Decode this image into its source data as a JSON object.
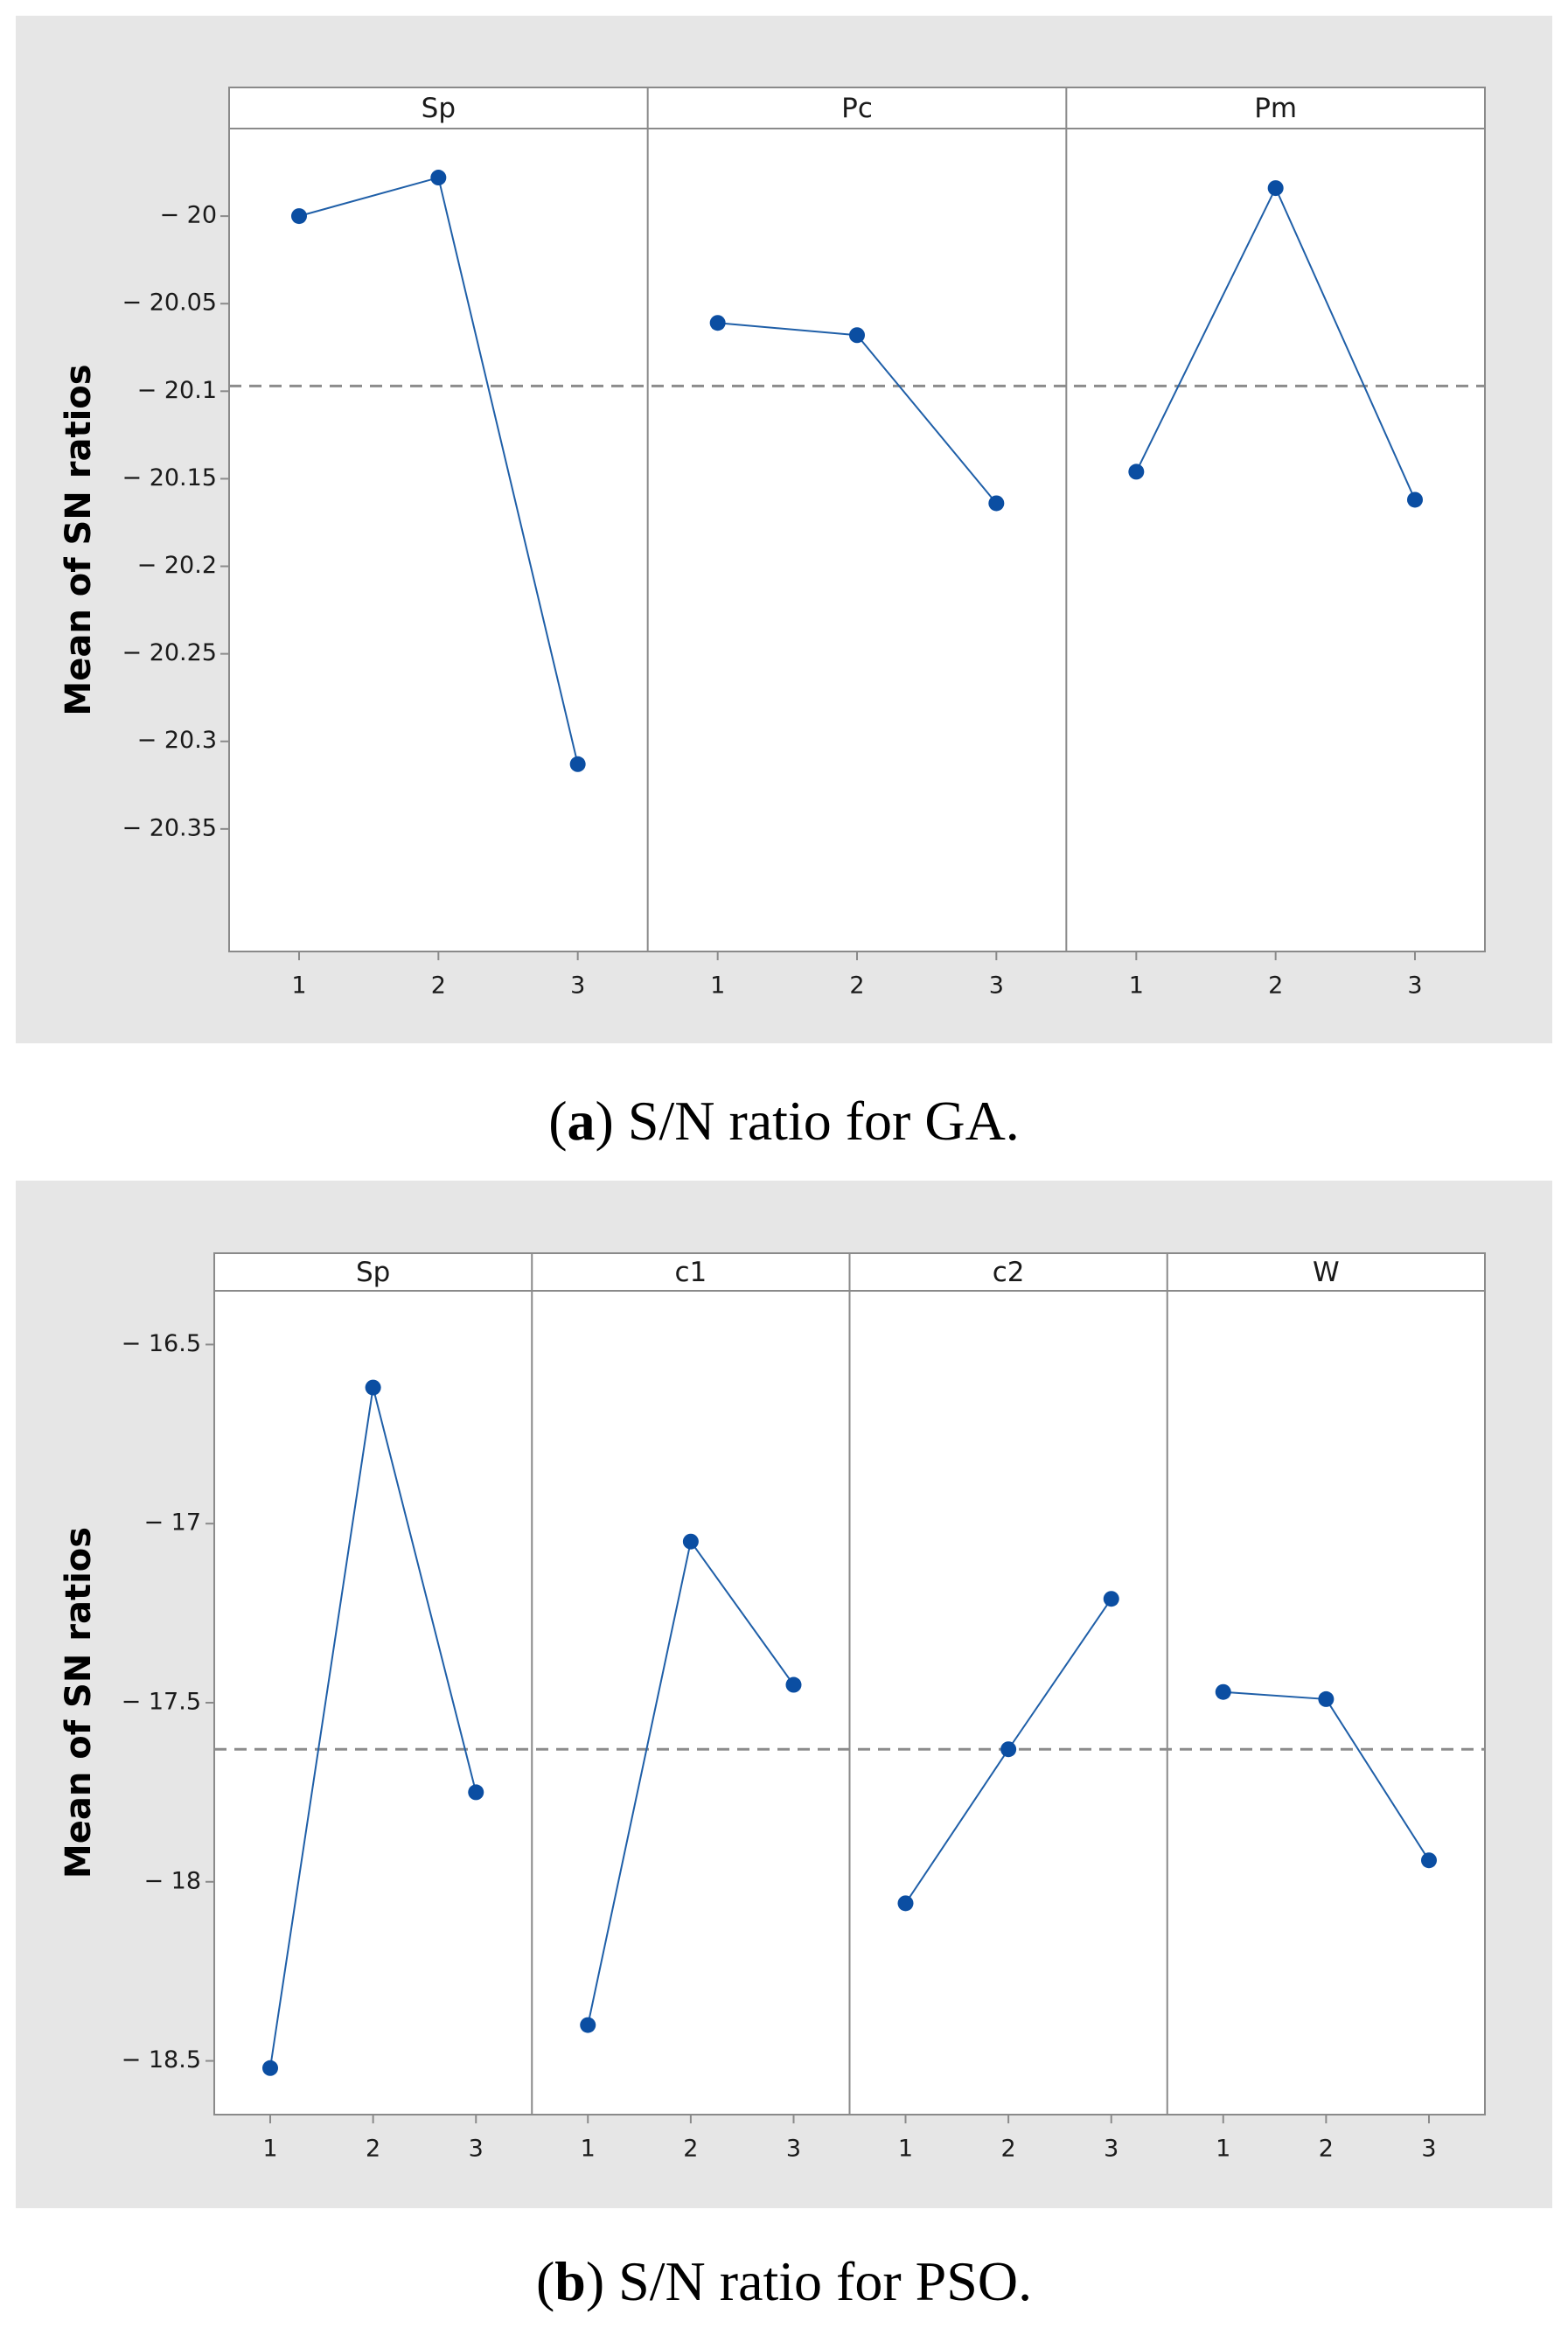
{
  "chart_data": [
    {
      "type": "line",
      "title": "",
      "ylabel": "Mean of SN ratios",
      "xlabel": "",
      "ylim": [
        -20.42,
        -19.95
      ],
      "yticks": [
        -20,
        -20.05,
        -20.1,
        -20.15,
        -20.2,
        -20.25,
        -20.3,
        -20.35
      ],
      "ytick_labels": [
        "− 20",
        "− 20.05",
        "− 20.1",
        "− 20.15",
        "− 20.2",
        "− 20.25",
        "− 20.3",
        "− 20.35"
      ],
      "overall_mean": -20.097,
      "panels": [
        {
          "name": "Sp",
          "categories": [
            "1",
            "2",
            "3"
          ],
          "values": [
            -20.0,
            -19.978,
            -20.313
          ]
        },
        {
          "name": "Pc",
          "categories": [
            "1",
            "2",
            "3"
          ],
          "values": [
            -20.061,
            -20.068,
            -20.164
          ]
        },
        {
          "name": "Pm",
          "categories": [
            "1",
            "2",
            "3"
          ],
          "values": [
            -20.146,
            -19.984,
            -20.162
          ]
        }
      ],
      "caption_label": "a",
      "caption_text": ") S/N ratio for GA."
    },
    {
      "type": "line",
      "title": "",
      "ylabel": "Mean of SN ratios",
      "xlabel": "",
      "ylim": [
        -18.65,
        -16.35
      ],
      "yticks": [
        -16.5,
        -17,
        -17.5,
        -18,
        -18.5
      ],
      "ytick_labels": [
        "− 16.5",
        "− 17",
        "− 17.5",
        "− 18",
        "− 18.5"
      ],
      "overall_mean": -17.63,
      "panels": [
        {
          "name": "Sp",
          "categories": [
            "1",
            "2",
            "3"
          ],
          "values": [
            -18.52,
            -16.62,
            -17.75
          ]
        },
        {
          "name": "c1",
          "categories": [
            "1",
            "2",
            "3"
          ],
          "values": [
            -18.4,
            -17.05,
            -17.45
          ]
        },
        {
          "name": "c2",
          "categories": [
            "1",
            "2",
            "3"
          ],
          "values": [
            -18.06,
            -17.63,
            -17.21
          ]
        },
        {
          "name": "W",
          "categories": [
            "1",
            "2",
            "3"
          ],
          "values": [
            -17.47,
            -17.49,
            -17.94
          ]
        }
      ],
      "caption_label": "b",
      "caption_text": ") S/N ratio for PSO."
    }
  ],
  "colors": {
    "outer_bg": "#e6e6e6",
    "plot_bg": "#ffffff",
    "line": "#1f5fa8",
    "marker": "#0b4ea2",
    "mean_line": "#8c8c8c",
    "frame": "#8a8a8a",
    "text": "#1a1a1a"
  }
}
